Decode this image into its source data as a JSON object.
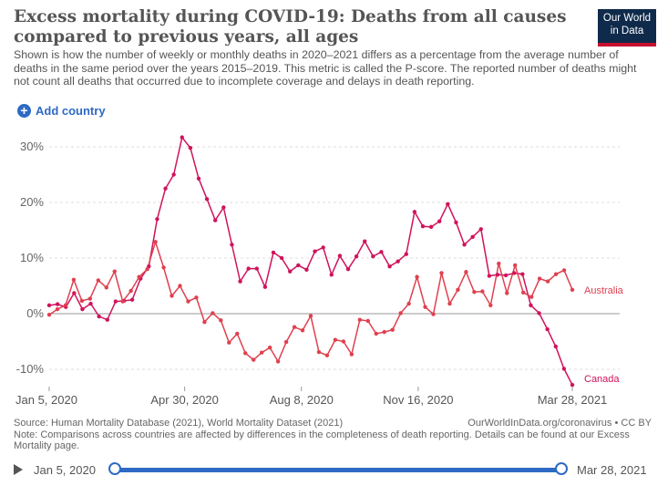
{
  "header": {
    "title": "Excess mortality during COVID-19: Deaths from all causes compared to previous years, all ages",
    "subtitle": "Shown is how the number of weekly or monthly deaths in 2020–2021 differs as a percentage from the average number of deaths in the same period over the years 2015–2019. This metric is called the P-score. The reported number of deaths might not count all deaths that occurred due to incomplete coverage and delays in death reporting.",
    "logo_line1": "Our World",
    "logo_line2": "in Data"
  },
  "controls": {
    "add_country": "Add country"
  },
  "colors": {
    "canada": "#d0135c",
    "australia": "#e0404f",
    "accent": "#2d6ac5"
  },
  "chart_data": {
    "type": "line",
    "x_start_date": "2020-01-05",
    "x_end_date": "2021-03-28",
    "x_ticks": [
      {
        "date": "2020-01-05",
        "label": "Jan 5, 2020"
      },
      {
        "date": "2020-04-30",
        "label": "Apr 30, 2020"
      },
      {
        "date": "2020-08-08",
        "label": "Aug 8, 2020"
      },
      {
        "date": "2020-11-16",
        "label": "Nov 16, 2020"
      },
      {
        "date": "2021-03-28",
        "label": "Mar 28, 2021"
      }
    ],
    "y_ticks": [
      -10,
      0,
      10,
      20,
      30
    ],
    "y_tick_labels": [
      "-10%",
      "0%",
      "10%",
      "20%",
      "30%"
    ],
    "ylim": [
      -13,
      33
    ],
    "series": [
      {
        "name": "Canada",
        "color": "#d0135c",
        "values": [
          1.5,
          1.7,
          1.2,
          3.7,
          0.8,
          1.8,
          -0.5,
          -1.1,
          2.2,
          2.3,
          2.5,
          6.3,
          8.5,
          17,
          22.5,
          25,
          31.7,
          29.8,
          24.3,
          20.6,
          16.8,
          19.1,
          12.4,
          5.8,
          8.1,
          8.1,
          4.8,
          11,
          10,
          7.6,
          8.7,
          7.9,
          11.2,
          11.9,
          7,
          10.4,
          8,
          10.3,
          13,
          10.3,
          11.1,
          8.5,
          9.4,
          10.7,
          18.3,
          15.7,
          15.6,
          16.6,
          19.7,
          16.4,
          12.4,
          13.8,
          15.2,
          6.8,
          7,
          6.9,
          7.3,
          7.1,
          1.5,
          0.1,
          -2.8,
          -5.9,
          -9.9,
          -12.8
        ]
      },
      {
        "name": "Australia",
        "color": "#e0404f",
        "values": [
          -0.2,
          0.8,
          1.5,
          6.1,
          2.3,
          2.7,
          6,
          4.7,
          7.6,
          2.2,
          4.1,
          6.6,
          8,
          12.9,
          8.3,
          3.2,
          5,
          2.2,
          2.9,
          -1.5,
          0.1,
          -1.2,
          -5.2,
          -3.6,
          -7.1,
          -8.3,
          -7,
          -6.1,
          -8.6,
          -5.1,
          -2.4,
          -3,
          -0.4,
          -6.9,
          -7.5,
          -4.7,
          -5,
          -7.3,
          -1.1,
          -1.3,
          -3.6,
          -3.3,
          -2.9,
          0.1,
          1.8,
          6.6,
          1.2,
          -0.1,
          7.3,
          1.8,
          4.3,
          7.5,
          3.9,
          4,
          1.5,
          9,
          3.7,
          8.7,
          3.8,
          3,
          6.3,
          5.8,
          7.1,
          7.8,
          4.3
        ]
      }
    ]
  },
  "footer": {
    "source": "Source: Human Mortality Database (2021), World Mortality Dataset (2021)",
    "site": "OurWorldInData.org/coronavirus • CC BY",
    "note": "Note: Comparisons across countries are affected by differences in the completeness of death reporting. Details can be found at our Excess Mortality page."
  },
  "timeline": {
    "start": "Jan 5, 2020",
    "end": "Mar 28, 2021"
  }
}
